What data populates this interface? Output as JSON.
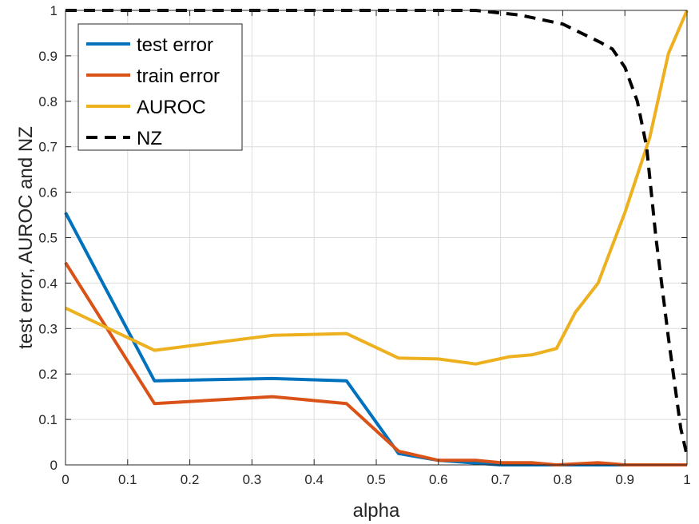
{
  "chart_data": {
    "type": "line",
    "xlabel": "alpha",
    "ylabel": "test error, AUROC and NZ",
    "xlim": [
      0,
      1
    ],
    "ylim": [
      0,
      1
    ],
    "xticks": [
      "0",
      "0.1",
      "0.2",
      "0.3",
      "0.4",
      "0.5",
      "0.6",
      "0.7",
      "0.8",
      "0.9",
      "1"
    ],
    "yticks": [
      "0",
      "0.1",
      "0.2",
      "0.3",
      "0.4",
      "0.5",
      "0.6",
      "0.7",
      "0.8",
      "0.9",
      "1"
    ],
    "grid": true,
    "legend_position": "top-left",
    "series": [
      {
        "name": "test error",
        "color": "#0072BD",
        "dashed": false,
        "x": [
          0,
          0.143,
          0.333,
          0.452,
          0.536,
          0.6,
          0.7,
          0.8,
          0.857,
          0.9,
          1
        ],
        "y": [
          0.555,
          0.185,
          0.19,
          0.185,
          0.025,
          0.01,
          0.0,
          0.0,
          0.0,
          0.0,
          0.0
        ]
      },
      {
        "name": "train error",
        "color": "#D95319",
        "dashed": false,
        "x": [
          0,
          0.143,
          0.333,
          0.452,
          0.536,
          0.6,
          0.66,
          0.7,
          0.75,
          0.79,
          0.857,
          0.9,
          1
        ],
        "y": [
          0.445,
          0.135,
          0.15,
          0.135,
          0.03,
          0.01,
          0.01,
          0.005,
          0.005,
          0.0,
          0.005,
          0.0,
          0.0
        ]
      },
      {
        "name": "AUROC",
        "color": "#EDB120",
        "dashed": false,
        "x": [
          0,
          0.143,
          0.333,
          0.452,
          0.536,
          0.6,
          0.66,
          0.714,
          0.75,
          0.79,
          0.82,
          0.857,
          0.9,
          0.94,
          0.97,
          1
        ],
        "y": [
          0.345,
          0.252,
          0.285,
          0.289,
          0.235,
          0.233,
          0.222,
          0.238,
          0.242,
          0.256,
          0.335,
          0.4,
          0.555,
          0.72,
          0.905,
          1.0
        ]
      },
      {
        "name": "NZ",
        "color": "#000000",
        "dashed": true,
        "x": [
          0,
          0.5,
          0.66,
          0.73,
          0.8,
          0.86,
          0.88,
          0.9,
          0.92,
          0.935,
          0.95,
          0.97,
          0.99,
          1
        ],
        "y": [
          1.0,
          1.0,
          1.0,
          0.99,
          0.97,
          0.93,
          0.915,
          0.875,
          0.8,
          0.7,
          0.5,
          0.28,
          0.08,
          0.02
        ]
      }
    ]
  }
}
